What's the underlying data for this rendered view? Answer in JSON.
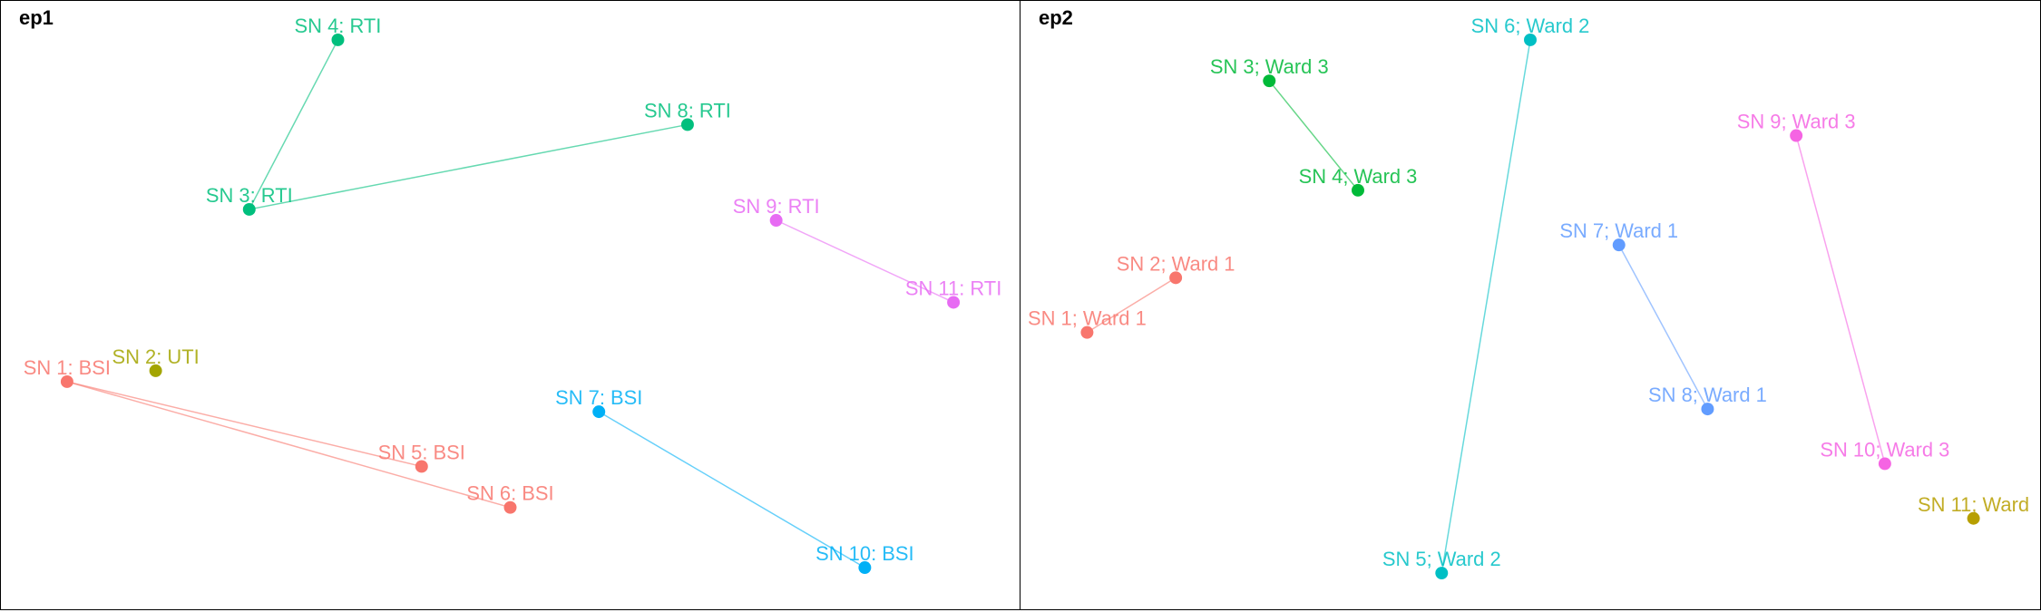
{
  "chart_data": [
    {
      "type": "scatter",
      "panel_title": "ep1",
      "xlim": [
        0,
        1
      ],
      "ylim": [
        0,
        1
      ],
      "grid": false,
      "points": [
        {
          "id": "sn1",
          "label": "SN 1: BSI",
          "group": "BSI",
          "x": 0.05,
          "y": 0.36
        },
        {
          "id": "sn2",
          "label": "SN 2: UTI",
          "group": "UTI",
          "x": 0.14,
          "y": 0.38
        },
        {
          "id": "sn3",
          "label": "SN 3: RTI",
          "group": "RTI",
          "x": 0.235,
          "y": 0.675
        },
        {
          "id": "sn4",
          "label": "SN 4: RTI",
          "group": "RTI",
          "x": 0.325,
          "y": 0.985
        },
        {
          "id": "sn5",
          "label": "SN 5: BSI",
          "group": "BSI",
          "x": 0.41,
          "y": 0.205
        },
        {
          "id": "sn6",
          "label": "SN 6: BSI",
          "group": "BSI",
          "x": 0.5,
          "y": 0.13
        },
        {
          "id": "sn7",
          "label": "SN 7: BSI",
          "group": "BSI",
          "x": 0.59,
          "y": 0.305
        },
        {
          "id": "sn8",
          "label": "SN 8: RTI",
          "group": "RTI",
          "x": 0.68,
          "y": 0.83
        },
        {
          "id": "sn9",
          "label": "SN 9: RTI",
          "group": "RTI",
          "x": 0.77,
          "y": 0.655
        },
        {
          "id": "sn10",
          "label": "SN 10: BSI",
          "group": "BSI",
          "x": 0.86,
          "y": 0.02
        },
        {
          "id": "sn11",
          "label": "SN 11: RTI",
          "group": "RTI",
          "x": 0.95,
          "y": 0.505
        }
      ],
      "edges": [
        {
          "from": "sn1",
          "to": "sn5",
          "color": "#F8766D"
        },
        {
          "from": "sn1",
          "to": "sn6",
          "color": "#F8766D"
        },
        {
          "from": "sn3",
          "to": "sn4",
          "color": "#00BF7D"
        },
        {
          "from": "sn3",
          "to": "sn8",
          "color": "#00BF7D"
        },
        {
          "from": "sn9",
          "to": "sn11",
          "color": "#E76BF3"
        },
        {
          "from": "sn7",
          "to": "sn10",
          "color": "#00B0F6"
        }
      ],
      "colors": {
        "sn1": "#F8766D",
        "sn2": "#A3A500",
        "sn3": "#00BF7D",
        "sn4": "#00BF7D",
        "sn5": "#F8766D",
        "sn6": "#F8766D",
        "sn7": "#00B0F6",
        "sn8": "#00BF7D",
        "sn9": "#E76BF3",
        "sn10": "#00B0F6",
        "sn11": "#E76BF3"
      }
    },
    {
      "type": "scatter",
      "panel_title": "ep2",
      "xlim": [
        0,
        1
      ],
      "ylim": [
        0,
        1
      ],
      "grid": false,
      "points": [
        {
          "id": "sn1",
          "label": "SN 1; Ward 1",
          "group": "Ward 1",
          "x": 0.05,
          "y": 0.45
        },
        {
          "id": "sn2",
          "label": "SN 2; Ward 1",
          "group": "Ward 1",
          "x": 0.14,
          "y": 0.55
        },
        {
          "id": "sn3",
          "label": "SN 3; Ward 3",
          "group": "Ward 3",
          "x": 0.235,
          "y": 0.91
        },
        {
          "id": "sn4",
          "label": "SN 4; Ward 3",
          "group": "Ward 3",
          "x": 0.325,
          "y": 0.71
        },
        {
          "id": "sn5",
          "label": "SN 5; Ward 2",
          "group": "Ward 2",
          "x": 0.41,
          "y": 0.01
        },
        {
          "id": "sn6",
          "label": "SN 6; Ward 2",
          "group": "Ward 2",
          "x": 0.5,
          "y": 0.985
        },
        {
          "id": "sn7",
          "label": "SN 7; Ward 1",
          "group": "Ward 1",
          "x": 0.59,
          "y": 0.61
        },
        {
          "id": "sn8",
          "label": "SN 8; Ward 1",
          "group": "Ward 1",
          "x": 0.68,
          "y": 0.31
        },
        {
          "id": "sn9",
          "label": "SN 9; Ward 3",
          "group": "Ward 3",
          "x": 0.77,
          "y": 0.81
        },
        {
          "id": "sn10",
          "label": "SN 10; Ward 3",
          "group": "Ward 3",
          "x": 0.86,
          "y": 0.21
        },
        {
          "id": "sn11",
          "label": "SN 11; Ward",
          "group": "Ward",
          "x": 0.95,
          "y": 0.11
        }
      ],
      "edges": [
        {
          "from": "sn1",
          "to": "sn2",
          "color": "#F8766D"
        },
        {
          "from": "sn3",
          "to": "sn4",
          "color": "#00BA38"
        },
        {
          "from": "sn5",
          "to": "sn6",
          "color": "#00BFC4"
        },
        {
          "from": "sn7",
          "to": "sn8",
          "color": "#619CFF"
        },
        {
          "from": "sn9",
          "to": "sn10",
          "color": "#F564E3"
        }
      ],
      "colors": {
        "sn1": "#F8766D",
        "sn2": "#F8766D",
        "sn3": "#00BA38",
        "sn4": "#00BA38",
        "sn5": "#00BFC4",
        "sn6": "#00BFC4",
        "sn7": "#619CFF",
        "sn8": "#619CFF",
        "sn9": "#F564E3",
        "sn10": "#F564E3",
        "sn11": "#B79F00"
      }
    }
  ]
}
